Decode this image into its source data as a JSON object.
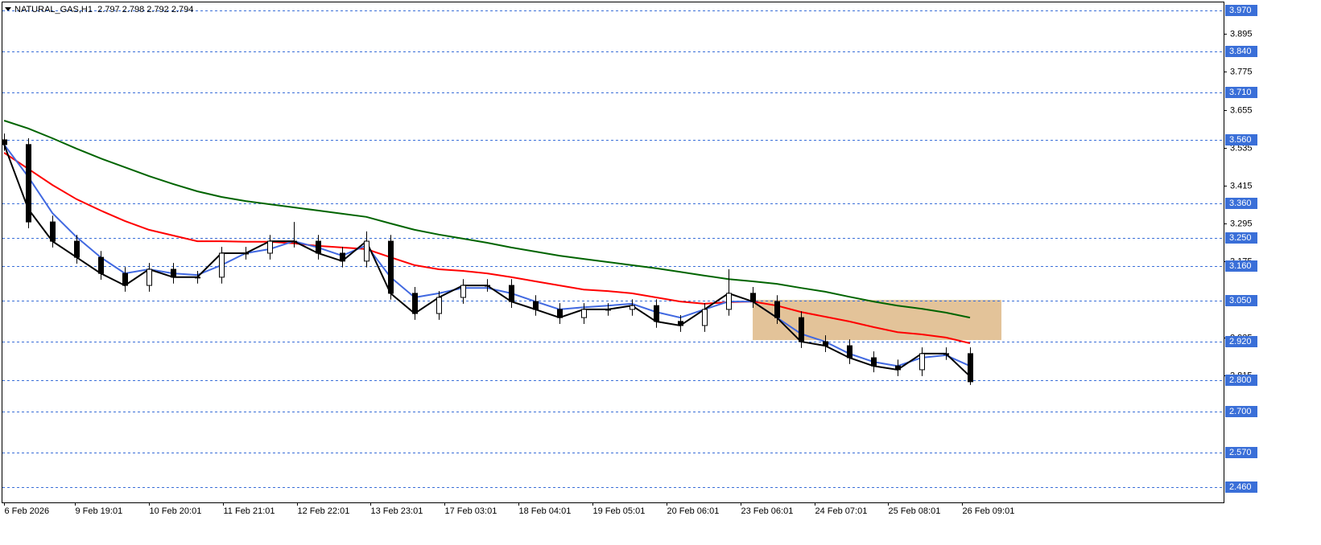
{
  "chart_data": {
    "type": "candlestick",
    "title": "NATURAL_GAS,H1  2.797 2.798 2.792 2.794",
    "ohlc": {
      "open": [
        3.56,
        3.545,
        3.3,
        3.239,
        3.188,
        3.137,
        3.099,
        3.15,
        3.125,
        3.125,
        3.201,
        3.201,
        3.239,
        3.239,
        3.201,
        3.176,
        3.239,
        3.074,
        3.01,
        3.061,
        3.099,
        3.099,
        3.048,
        3.023,
        2.997,
        3.023,
        3.023,
        3.035,
        2.985,
        2.972,
        3.023,
        3.074,
        3.048,
        2.997,
        2.921,
        2.908,
        2.87,
        2.844,
        2.832,
        2.883,
        2.883
      ],
      "high": [
        3.58,
        3.565,
        3.32,
        3.259,
        3.208,
        3.157,
        3.17,
        3.17,
        3.145,
        3.221,
        3.221,
        3.259,
        3.3,
        3.259,
        3.221,
        3.27,
        3.259,
        3.094,
        3.081,
        3.119,
        3.119,
        3.119,
        3.068,
        3.043,
        3.043,
        3.043,
        3.055,
        3.055,
        3.005,
        3.043,
        3.15,
        3.094,
        3.068,
        3.017,
        2.941,
        2.928,
        2.89,
        2.864,
        2.903,
        2.903,
        2.903
      ],
      "low": [
        3.525,
        3.28,
        3.219,
        3.168,
        3.117,
        3.079,
        3.079,
        3.105,
        3.105,
        3.105,
        3.181,
        3.181,
        3.219,
        3.181,
        3.156,
        3.156,
        3.054,
        2.99,
        2.99,
        3.041,
        3.079,
        3.028,
        3.003,
        2.977,
        2.977,
        3.003,
        3.003,
        2.965,
        2.952,
        2.952,
        3.003,
        3.028,
        2.977,
        2.901,
        2.888,
        2.85,
        2.824,
        2.812,
        2.812,
        2.863,
        2.784
      ],
      "close": [
        3.545,
        3.3,
        3.239,
        3.188,
        3.137,
        3.099,
        3.15,
        3.125,
        3.125,
        3.201,
        3.201,
        3.239,
        3.239,
        3.201,
        3.176,
        3.239,
        3.074,
        3.01,
        3.061,
        3.099,
        3.099,
        3.048,
        3.023,
        2.997,
        3.023,
        3.023,
        3.035,
        2.985,
        2.972,
        3.023,
        3.074,
        3.048,
        2.997,
        2.921,
        2.908,
        2.87,
        2.844,
        2.832,
        2.883,
        2.883,
        2.794
      ]
    },
    "candle_colors": {
      "up": "#ffffff",
      "down": "#000000",
      "outline": "#000000"
    },
    "lines": [
      {
        "color": "#006400",
        "values": [
          3.621,
          3.596,
          3.565,
          3.532,
          3.501,
          3.473,
          3.445,
          3.42,
          3.397,
          3.379,
          3.366,
          3.356,
          3.346,
          3.336,
          3.326,
          3.316,
          3.295,
          3.275,
          3.26,
          3.247,
          3.234,
          3.219,
          3.206,
          3.193,
          3.183,
          3.173,
          3.163,
          3.153,
          3.142,
          3.13,
          3.119,
          3.112,
          3.104,
          3.091,
          3.079,
          3.063,
          3.048,
          3.035,
          3.025,
          3.013,
          2.997
        ]
      },
      {
        "color": "#ff0000",
        "values": [
          3.519,
          3.468,
          3.417,
          3.372,
          3.336,
          3.303,
          3.275,
          3.257,
          3.239,
          3.239,
          3.237,
          3.237,
          3.232,
          3.224,
          3.219,
          3.214,
          3.188,
          3.163,
          3.15,
          3.145,
          3.137,
          3.125,
          3.112,
          3.099,
          3.086,
          3.081,
          3.074,
          3.061,
          3.048,
          3.041,
          3.046,
          3.048,
          3.035,
          3.015,
          3.0,
          2.985,
          2.967,
          2.951,
          2.944,
          2.934,
          2.916
        ]
      },
      {
        "color": "#4169e1",
        "values": [
          3.545,
          3.443,
          3.328,
          3.252,
          3.188,
          3.137,
          3.15,
          3.137,
          3.132,
          3.163,
          3.201,
          3.214,
          3.239,
          3.219,
          3.193,
          3.226,
          3.125,
          3.061,
          3.074,
          3.091,
          3.091,
          3.074,
          3.048,
          3.023,
          3.03,
          3.035,
          3.041,
          3.015,
          2.997,
          3.023,
          3.048,
          3.048,
          2.997,
          2.946,
          2.921,
          2.883,
          2.857,
          2.844,
          2.87,
          2.878,
          2.844
        ]
      },
      {
        "color": "#000000",
        "values": [
          3.545,
          3.341,
          3.239,
          3.188,
          3.137,
          3.099,
          3.15,
          3.125,
          3.125,
          3.201,
          3.201,
          3.239,
          3.239,
          3.201,
          3.176,
          3.239,
          3.074,
          3.01,
          3.061,
          3.099,
          3.099,
          3.048,
          3.023,
          2.997,
          3.023,
          3.023,
          3.035,
          2.985,
          2.972,
          3.023,
          3.074,
          3.048,
          2.997,
          2.921,
          2.908,
          2.87,
          2.844,
          2.832,
          2.883,
          2.883,
          2.811
        ]
      }
    ],
    "zone": {
      "from": 31,
      "to": 41.3,
      "top": 3.053,
      "bottom": 2.926,
      "color": "#deb887"
    },
    "levels": [
      {
        "value": 3.97,
        "label": "3.970"
      },
      {
        "value": 3.84,
        "label": "3.840"
      },
      {
        "value": 3.71,
        "label": "3.710"
      },
      {
        "value": 3.56,
        "label": "3.560"
      },
      {
        "value": 3.36,
        "label": "3.360"
      },
      {
        "value": 3.25,
        "label": "3.250"
      },
      {
        "value": 3.16,
        "label": "3.160"
      },
      {
        "value": 3.05,
        "label": "3.050"
      },
      {
        "value": 2.92,
        "label": "2.920"
      },
      {
        "value": 2.8,
        "label": "2.800"
      },
      {
        "value": 2.7,
        "label": "2.700"
      },
      {
        "value": 2.57,
        "label": "2.570"
      },
      {
        "value": 2.46,
        "label": "2.460"
      }
    ],
    "level_color": "#3a6fd8",
    "ylim": [
      2.412,
      3.995
    ],
    "yticks": [
      3.895,
      3.775,
      3.655,
      3.535,
      3.415,
      3.295,
      3.175,
      2.935,
      2.815
    ],
    "xlim": [
      -0.07,
      50.5
    ],
    "xticks": [
      {
        "value": 0,
        "label": "6 Feb 2026"
      },
      {
        "value": 2.93,
        "label": "9 Feb 19:01"
      },
      {
        "value": 6,
        "label": "10 Feb 20:01"
      },
      {
        "value": 9.07,
        "label": "11 Feb 21:01"
      },
      {
        "value": 12.13,
        "label": "12 Feb 22:01"
      },
      {
        "value": 15.17,
        "label": "13 Feb 23:01"
      },
      {
        "value": 18.23,
        "label": "17 Feb 03:01"
      },
      {
        "value": 21.3,
        "label": "18 Feb 04:01"
      },
      {
        "value": 24.37,
        "label": "19 Feb 05:01"
      },
      {
        "value": 27.43,
        "label": "20 Feb 06:01"
      },
      {
        "value": 30.5,
        "label": "23 Feb 06:01"
      },
      {
        "value": 33.57,
        "label": "24 Feb 07:01"
      },
      {
        "value": 36.6,
        "label": "25 Feb 08:01"
      },
      {
        "value": 39.67,
        "label": "26 Feb 09:01"
      }
    ]
  }
}
